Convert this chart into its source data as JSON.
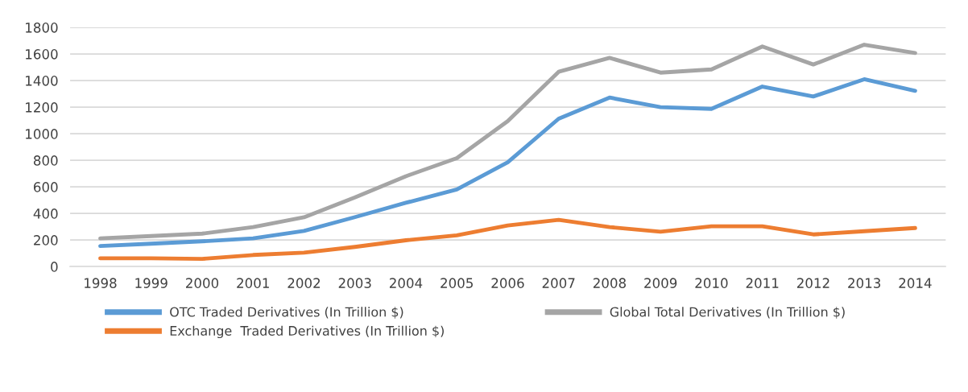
{
  "chart_data": {
    "type": "line",
    "categories": [
      "1998",
      "1999",
      "2000",
      "2001",
      "2002",
      "2003",
      "2004",
      "2005",
      "2006",
      "2007",
      "2008",
      "2009",
      "2010",
      "2011",
      "2012",
      "2013",
      "2014"
    ],
    "series": [
      {
        "name": "OTC Traded Derivatives (In Trillion $)",
        "color": "#5b9bd5",
        "values": [
          155,
          172,
          190,
          212,
          268,
          372,
          480,
          580,
          785,
          1113,
          1272,
          1200,
          1187,
          1355,
          1280,
          1410,
          1323
        ]
      },
      {
        "name": "Exchange  Traded Derivatives (In Trillion $)",
        "color": "#ed7d31",
        "values": [
          62,
          62,
          58,
          87,
          105,
          148,
          198,
          235,
          309,
          352,
          297,
          262,
          303,
          303,
          242,
          266,
          290
        ]
      },
      {
        "name": "Global Total Derivatives (In Trillion $)",
        "color": "#a5a5a5",
        "values": [
          212,
          230,
          248,
          297,
          371,
          520,
          680,
          816,
          1095,
          1466,
          1571,
          1460,
          1484,
          1657,
          1521,
          1670,
          1608
        ]
      }
    ],
    "ylim": [
      0,
      1800
    ],
    "yticks": [
      0,
      200,
      400,
      600,
      800,
      1000,
      1200,
      1400,
      1600,
      1800
    ],
    "grid": "y",
    "legend": "bottom",
    "marker": "none",
    "line_style": "solid"
  }
}
